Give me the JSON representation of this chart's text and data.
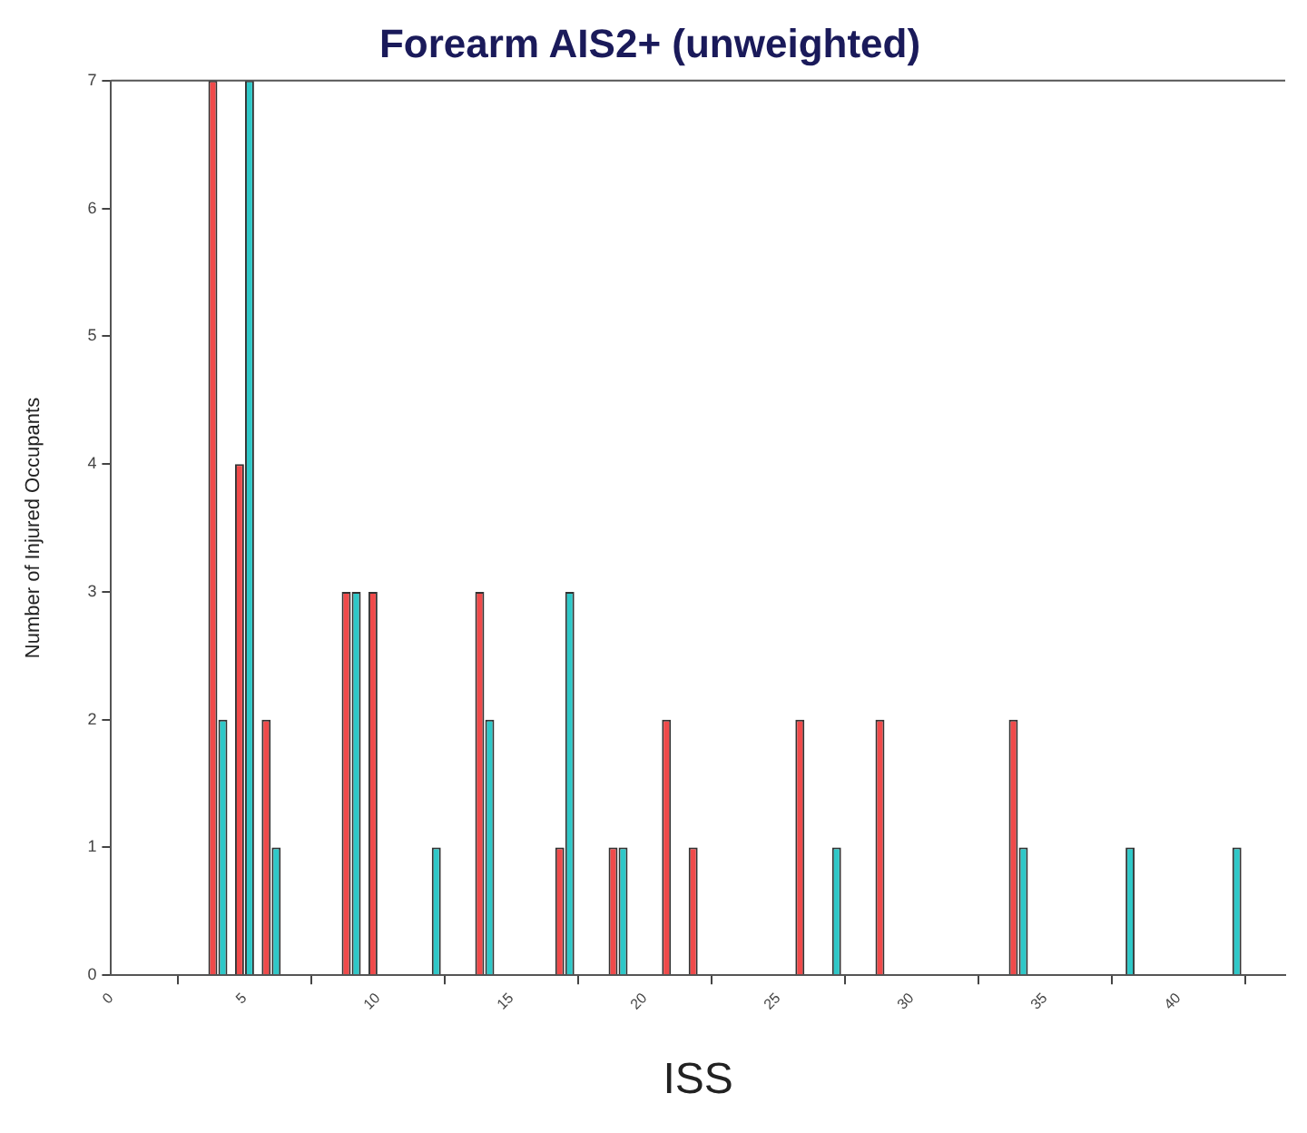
{
  "chart_data": {
    "type": "bar",
    "title": "Forearm AIS2+ (unweighted)",
    "xlabel": "ISS",
    "ylabel": "Number of Injured Occupants",
    "x": [
      4,
      5,
      6,
      7,
      8,
      9,
      10,
      11,
      12,
      13,
      14,
      15,
      16,
      17,
      18,
      19,
      20,
      21,
      22,
      23,
      24,
      25,
      26,
      27,
      28,
      29,
      30,
      31,
      32,
      33,
      34,
      35,
      36,
      37,
      38,
      39,
      40,
      41,
      42,
      43
    ],
    "series": [
      {
        "color": "#f04a4a",
        "values": [
          7,
          4,
          2,
          0,
          0,
          3,
          3,
          0,
          0,
          0,
          3,
          0,
          0,
          1,
          0,
          1,
          0,
          2,
          1,
          0,
          0,
          0,
          2,
          0,
          0,
          2,
          0,
          0,
          0,
          0,
          2,
          0,
          0,
          0,
          0,
          0,
          0,
          0,
          0,
          0
        ]
      },
      {
        "color": "#2ec8c8",
        "values": [
          2,
          7,
          1,
          0,
          0,
          3,
          0,
          0,
          1,
          0,
          2,
          0,
          0,
          3,
          0,
          1,
          0,
          0,
          0,
          0,
          0,
          0,
          0,
          1,
          0,
          0,
          0,
          0,
          0,
          0,
          1,
          0,
          0,
          0,
          1,
          0,
          0,
          0,
          1,
          0
        ]
      }
    ],
    "xlim": [
      0,
      44
    ],
    "xticks": [
      0,
      5,
      10,
      15,
      20,
      25,
      30,
      35,
      40
    ],
    "ylim": [
      0,
      7
    ],
    "yticks": [
      0,
      1,
      2,
      3,
      4,
      5,
      6,
      7
    ],
    "grid": false,
    "legend": false
  }
}
